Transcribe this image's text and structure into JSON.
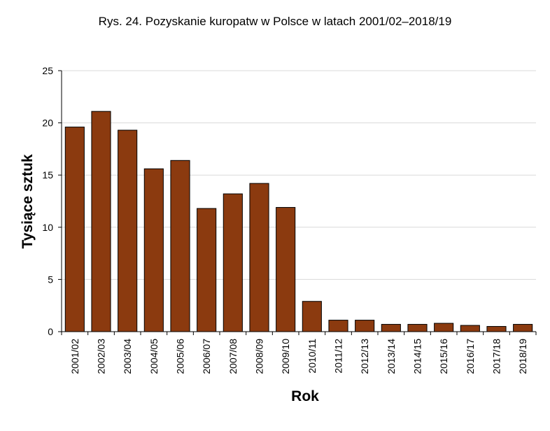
{
  "chart_data": {
    "type": "bar",
    "title": "Rys. 24. Pozyskanie kuropatw w Polsce w latach 2001/02–2018/19",
    "xlabel": "Rok",
    "ylabel": "Tysiące sztuk",
    "ylim": [
      0,
      25
    ],
    "yticks": [
      0,
      5,
      10,
      15,
      20,
      25
    ],
    "grid": true,
    "legend": "none",
    "bar_color": "#8B3A0F",
    "categories": [
      "2001/02",
      "2002/03",
      "2003/04",
      "2004/05",
      "2005/06",
      "2006/07",
      "2007/08",
      "2008/09",
      "2009/10",
      "2010/11",
      "2011/12",
      "2012/13",
      "2013/14",
      "2014/15",
      "2015/16",
      "2016/17",
      "2017/18",
      "2018/19"
    ],
    "values": [
      19.6,
      21.1,
      19.3,
      15.6,
      16.4,
      11.8,
      13.2,
      14.2,
      11.9,
      2.9,
      1.1,
      1.1,
      0.7,
      0.7,
      0.8,
      0.6,
      0.5,
      0.7
    ]
  }
}
